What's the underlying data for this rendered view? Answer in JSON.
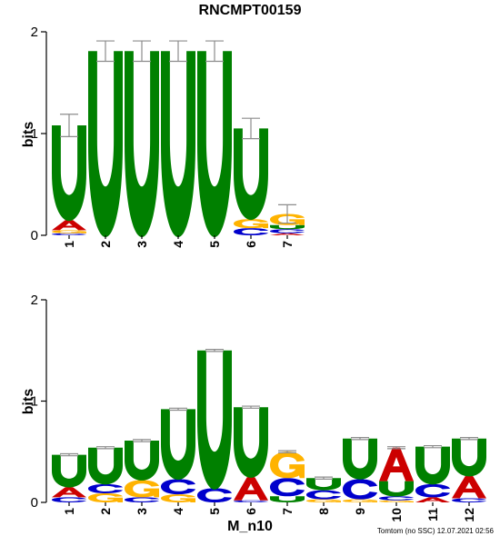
{
  "title": "RNCMPT00159",
  "xlabel": "M_n10",
  "footer": "Tomtom (no SSC) 12.07.2021 02:56",
  "colors": {
    "A": "#cc0000",
    "C": "#0000cc",
    "G": "#ffb300",
    "U": "#008000"
  },
  "chart_data": [
    {
      "type": "sequence-logo",
      "name": "top",
      "ylabel": "bits",
      "ylim": [
        0,
        2
      ],
      "yticks": [
        "0",
        "1",
        "2"
      ],
      "positions": [
        {
          "label": "1",
          "letters": [
            [
              "C",
              0.02
            ],
            [
              "G",
              0.03
            ],
            [
              "A",
              0.1
            ],
            [
              "U",
              0.93
            ]
          ],
          "err": 0.11
        },
        {
          "label": "2",
          "letters": [
            [
              "U",
              1.81
            ]
          ],
          "err": 0.1
        },
        {
          "label": "3",
          "letters": [
            [
              "U",
              1.81
            ]
          ],
          "err": 0.1
        },
        {
          "label": "4",
          "letters": [
            [
              "U",
              1.81
            ]
          ],
          "err": 0.1
        },
        {
          "label": "5",
          "letters": [
            [
              "U",
              1.81
            ]
          ],
          "err": 0.1
        },
        {
          "label": "6",
          "letters": [
            [
              "C",
              0.07
            ],
            [
              "G",
              0.09
            ],
            [
              "U",
              0.89
            ]
          ],
          "err": 0.1
        },
        {
          "label": "7",
          "letters": [
            [
              "A",
              0.02
            ],
            [
              "C",
              0.04
            ],
            [
              "U",
              0.04
            ],
            [
              "G",
              0.11
            ]
          ],
          "err": 0.09
        }
      ]
    },
    {
      "type": "sequence-logo",
      "name": "bottom",
      "ylabel": "bits",
      "ylim": [
        0,
        2
      ],
      "yticks": [
        "0",
        "1",
        "2"
      ],
      "positions": [
        {
          "label": "1",
          "letters": [
            [
              "C",
              0.05
            ],
            [
              "A",
              0.1
            ],
            [
              "U",
              0.32
            ]
          ],
          "err": 0.01
        },
        {
          "label": "2",
          "letters": [
            [
              "G",
              0.09
            ],
            [
              "C",
              0.09
            ],
            [
              "U",
              0.36
            ]
          ],
          "err": 0.01
        },
        {
          "label": "3",
          "letters": [
            [
              "C",
              0.05
            ],
            [
              "G",
              0.17
            ],
            [
              "U",
              0.39
            ]
          ],
          "err": 0.01
        },
        {
          "label": "4",
          "letters": [
            [
              "G",
              0.08
            ],
            [
              "C",
              0.15
            ],
            [
              "U",
              0.69
            ]
          ],
          "err": 0.01
        },
        {
          "label": "5",
          "letters": [
            [
              "C",
              0.14
            ],
            [
              "U",
              1.36
            ]
          ],
          "err": 0.01
        },
        {
          "label": "6",
          "letters": [
            [
              "C",
              0.02
            ],
            [
              "A",
              0.23
            ],
            [
              "U",
              0.69
            ]
          ],
          "err": 0.01
        },
        {
          "label": "7",
          "letters": [
            [
              "U",
              0.06
            ],
            [
              "C",
              0.18
            ],
            [
              "G",
              0.26
            ]
          ],
          "err": 0.01
        },
        {
          "label": "8",
          "letters": [
            [
              "G",
              0.03
            ],
            [
              "C",
              0.09
            ],
            [
              "U",
              0.12
            ]
          ],
          "err": 0.01
        },
        {
          "label": "9",
          "letters": [
            [
              "G",
              0.03
            ],
            [
              "C",
              0.2
            ],
            [
              "U",
              0.4
            ]
          ],
          "err": 0.01
        },
        {
          "label": "10",
          "letters": [
            [
              "G",
              0.02
            ],
            [
              "C",
              0.04
            ],
            [
              "U",
              0.15
            ],
            [
              "A",
              0.33
            ]
          ],
          "err": 0.01
        },
        {
          "label": "11",
          "letters": [
            [
              "A",
              0.05
            ],
            [
              "C",
              0.13
            ],
            [
              "U",
              0.37
            ]
          ],
          "err": 0.01
        },
        {
          "label": "12",
          "letters": [
            [
              "C",
              0.04
            ],
            [
              "A",
              0.22
            ],
            [
              "U",
              0.37
            ]
          ],
          "err": 0.01
        }
      ]
    }
  ]
}
